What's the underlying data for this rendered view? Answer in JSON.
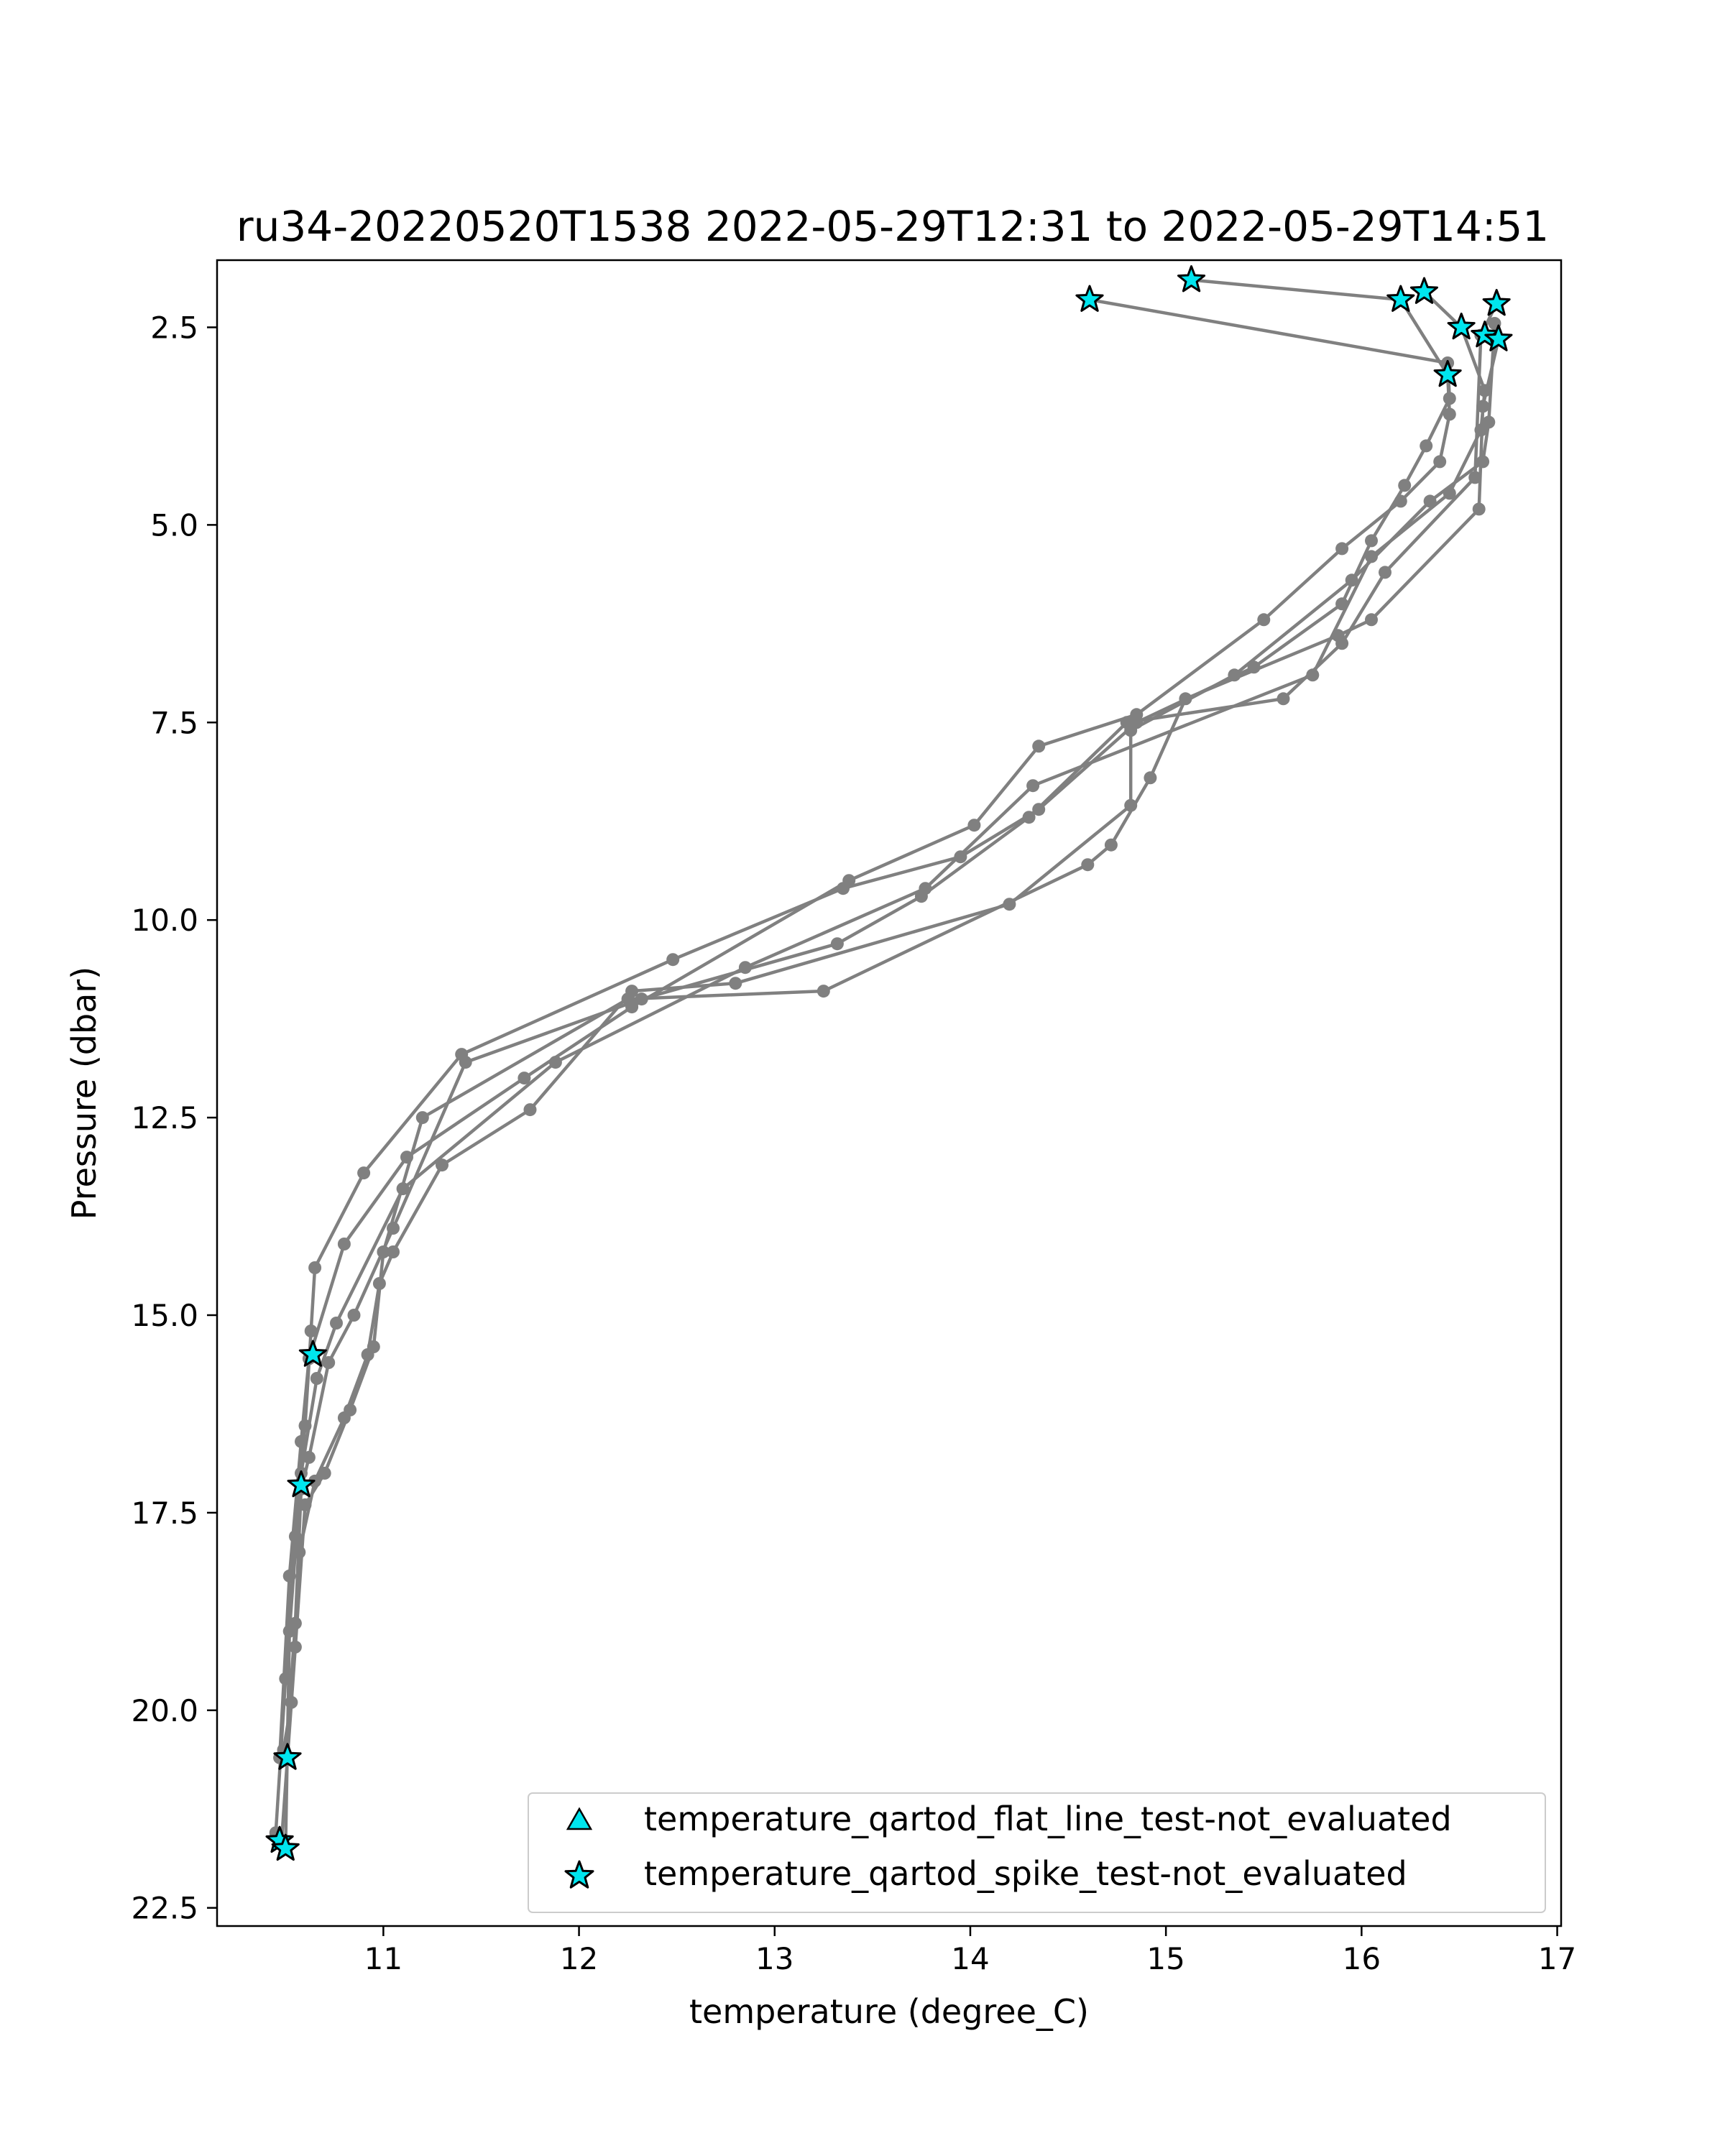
{
  "chart_data": {
    "type": "line",
    "title": "ru34-20220520T1538 2022-05-29T12:31 to 2022-05-29T14:51",
    "xlabel": "temperature (degree_C)",
    "ylabel": "Pressure (dbar)",
    "xlim": [
      10.15,
      17.02
    ],
    "ylim": [
      22.73,
      1.65
    ],
    "y_inverted": true,
    "x_ticks": [
      11,
      12,
      13,
      14,
      15,
      16,
      17
    ],
    "x_tick_labels": [
      "11",
      "12",
      "13",
      "14",
      "15",
      "16",
      "17"
    ],
    "y_ticks": [
      2.5,
      5.0,
      7.5,
      10.0,
      12.5,
      15.0,
      17.5,
      20.0,
      22.5
    ],
    "y_tick_labels": [
      "2.5",
      "5.0",
      "7.5",
      "10.0",
      "12.5",
      "15.0",
      "17.5",
      "20.0",
      "22.5"
    ],
    "grid": false,
    "legend_position": "lower-right",
    "colors": {
      "line": "#808080",
      "marker": "#00e5ee",
      "marker_edge": "#000000"
    },
    "series": [
      {
        "x": [
          14.61,
          16.44,
          16.45,
          16.33,
          16.22,
          16.05,
          15.9,
          15.45,
          14.85,
          14.35,
          13.95,
          13.35,
          12.48,
          11.4,
          10.9,
          10.65,
          10.63,
          10.6,
          10.55,
          10.5,
          10.45
        ],
        "y": [
          2.15,
          2.95,
          3.4,
          4.0,
          4.5,
          5.2,
          6.0,
          6.8,
          7.5,
          8.6,
          9.2,
          9.6,
          10.5,
          11.7,
          13.2,
          14.4,
          15.2,
          16.4,
          17.8,
          19.6,
          21.55
        ]
      },
      {
        "x": [
          15.13,
          16.2,
          16.44,
          16.45,
          16.4,
          16.2,
          15.9,
          15.5,
          14.85,
          14.35,
          14.02,
          13.38,
          12.27,
          11.72,
          11.12,
          10.8,
          10.62,
          10.58,
          10.52,
          10.47
        ],
        "y": [
          1.9,
          2.15,
          3.1,
          3.6,
          4.2,
          4.7,
          5.3,
          6.2,
          7.4,
          7.8,
          8.8,
          9.5,
          11.1,
          12.0,
          13.0,
          14.1,
          15.55,
          16.6,
          18.3,
          20.6
        ]
      },
      {
        "x": [
          16.32,
          16.51,
          16.63,
          16.61,
          16.45,
          16.05,
          15.75,
          14.32,
          13.77,
          12.85,
          11.88,
          11.1,
          10.76,
          10.66,
          10.58,
          10.52,
          10.5
        ],
        "y": [
          2.05,
          2.5,
          3.3,
          3.8,
          4.6,
          5.4,
          6.9,
          8.3,
          9.6,
          10.6,
          11.8,
          13.4,
          15.1,
          15.8,
          17.0,
          19.0,
          21.75
        ]
      },
      {
        "x": [
          16.69,
          16.61,
          16.58,
          16.12,
          15.9,
          15.6,
          14.8,
          14.3,
          13.75,
          13.32,
          12.32,
          11.42,
          11.05,
          10.85,
          10.72,
          10.62,
          10.58,
          10.55,
          10.5
        ],
        "y": [
          2.2,
          2.6,
          4.4,
          5.6,
          6.5,
          7.2,
          7.5,
          8.7,
          9.7,
          10.3,
          11.0,
          11.8,
          13.9,
          15.0,
          15.6,
          16.8,
          17.2,
          18.9,
          20.6
        ]
      },
      {
        "x": [
          16.7,
          16.62,
          16.6,
          16.05,
          15.88,
          15.1,
          14.92,
          14.72,
          14.6,
          13.25,
          12.25,
          11.2,
          11.0,
          10.95,
          10.83,
          10.7,
          10.6,
          10.55,
          10.48
        ],
        "y": [
          2.65,
          3.5,
          4.8,
          6.2,
          6.4,
          7.2,
          8.2,
          9.05,
          9.3,
          10.9,
          11.0,
          12.5,
          14.2,
          15.4,
          16.2,
          17.0,
          17.4,
          19.2,
          21.65
        ]
      },
      {
        "x": [
          16.68,
          16.65,
          16.62,
          16.35,
          15.95,
          15.35,
          14.82,
          14.82,
          14.2,
          12.8,
          12.27,
          11.75,
          11.3,
          11.05,
          10.98,
          10.92,
          10.8,
          10.65,
          10.57,
          10.53,
          10.49
        ],
        "y": [
          2.45,
          3.7,
          4.2,
          4.7,
          5.7,
          6.9,
          7.6,
          8.55,
          9.8,
          10.8,
          10.9,
          12.4,
          13.1,
          14.2,
          14.6,
          15.5,
          16.3,
          17.1,
          18.0,
          19.9,
          20.5
        ]
      }
    ],
    "legend": [
      {
        "label": "temperature_qartod_flat_line_test-not_evaluated",
        "marker": "triangle",
        "points": []
      },
      {
        "label": "temperature_qartod_spike_test-not_evaluated",
        "marker": "star",
        "points": [
          [
            14.61,
            2.15
          ],
          [
            15.13,
            1.9
          ],
          [
            16.2,
            2.15
          ],
          [
            16.32,
            2.05
          ],
          [
            16.69,
            2.2
          ],
          [
            16.51,
            2.5
          ],
          [
            16.63,
            2.6
          ],
          [
            16.7,
            2.65
          ],
          [
            16.44,
            3.1
          ],
          [
            10.64,
            15.5
          ],
          [
            10.58,
            17.15
          ],
          [
            10.51,
            20.6
          ],
          [
            10.47,
            21.65
          ],
          [
            10.5,
            21.75
          ]
        ]
      }
    ]
  }
}
